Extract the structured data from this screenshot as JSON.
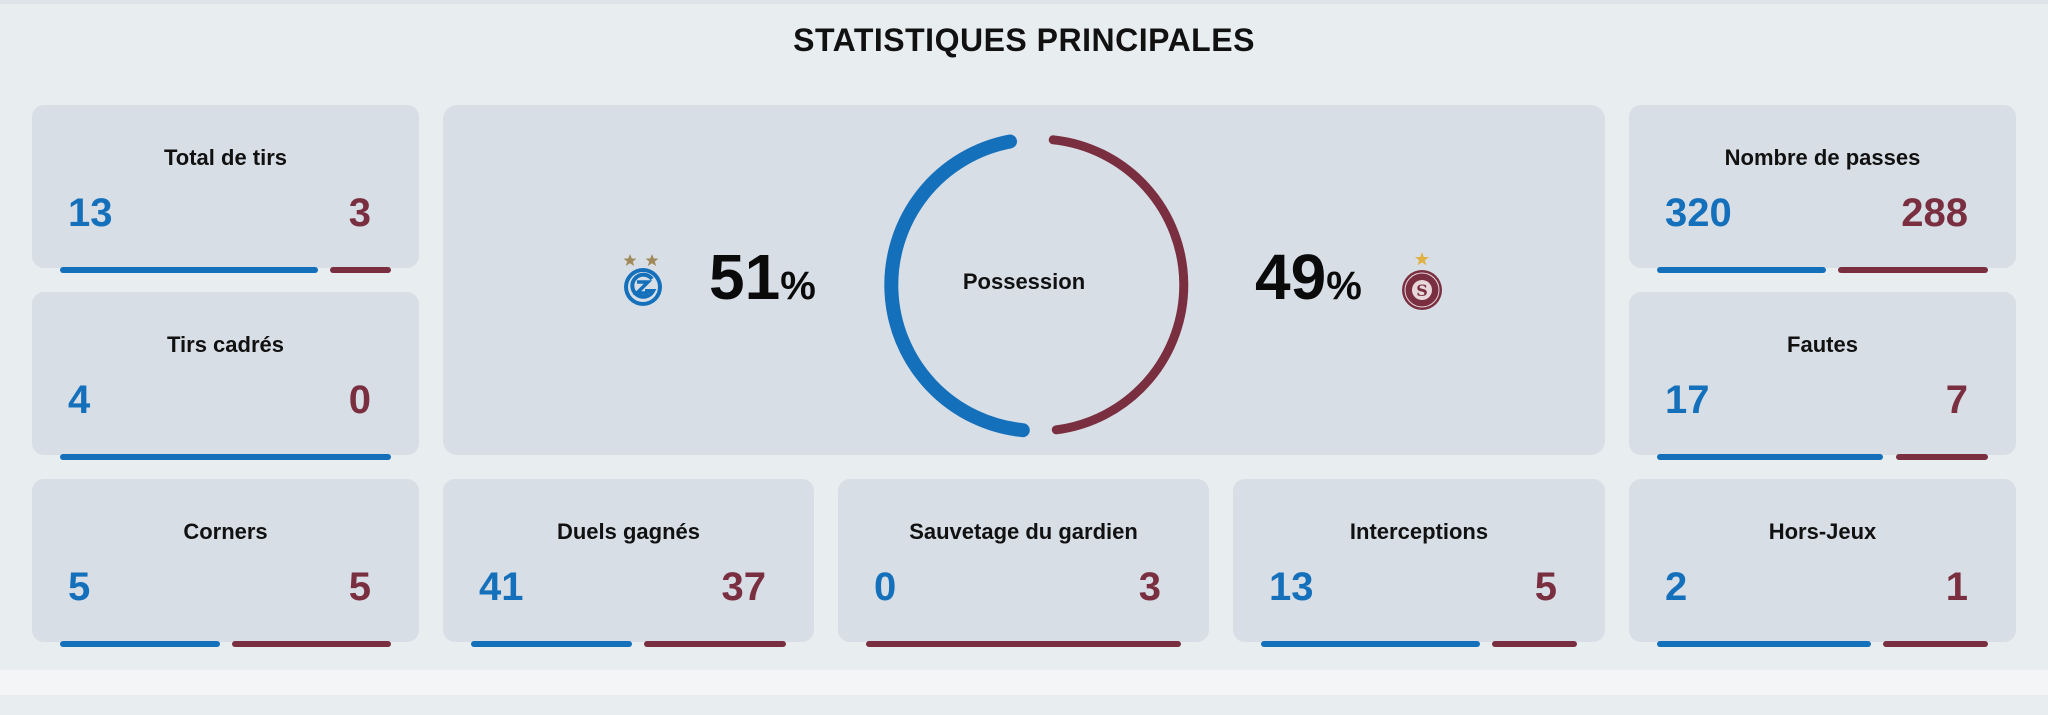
{
  "page": {
    "title": "STATISTIQUES PRINCIPALES"
  },
  "colors": {
    "home": "#1570bb",
    "away": "#7a2f40",
    "card_bg": "#d8dee6",
    "page_bg": "#e8edf0"
  },
  "possession": {
    "label": "Possession",
    "home_value": "51",
    "away_value": "49",
    "unit": "%",
    "home_share": 0.51,
    "away_share": 0.49,
    "home_crest": "grasshopper-club-crest-icon",
    "away_crest": "servette-fc-crest-icon"
  },
  "stats": {
    "total_shots": {
      "label": "Total de tirs",
      "home": "13",
      "away": "3",
      "home_share": 0.81,
      "away_share": 0.19
    },
    "shots_on_target": {
      "label": "Tirs cadrés",
      "home": "4",
      "away": "0",
      "home_share": 1.0,
      "away_share": 0.0
    },
    "corners": {
      "label": "Corners",
      "home": "5",
      "away": "5",
      "home_share": 0.5,
      "away_share": 0.5
    },
    "duels_won": {
      "label": "Duels gagnés",
      "home": "41",
      "away": "37",
      "home_share": 0.53,
      "away_share": 0.47
    },
    "goalkeeper_saves": {
      "label": "Sauvetage du gardien",
      "home": "0",
      "away": "3",
      "home_share": 0.0,
      "away_share": 1.0
    },
    "interceptions": {
      "label": "Interceptions",
      "home": "13",
      "away": "5",
      "home_share": 0.72,
      "away_share": 0.28
    },
    "passes": {
      "label": "Nombre de passes",
      "home": "320",
      "away": "288",
      "home_share": 0.53,
      "away_share": 0.47
    },
    "fouls": {
      "label": "Fautes",
      "home": "17",
      "away": "7",
      "home_share": 0.71,
      "away_share": 0.29
    },
    "offsides": {
      "label": "Hors-Jeux",
      "home": "2",
      "away": "1",
      "home_share": 0.67,
      "away_share": 0.33
    }
  }
}
